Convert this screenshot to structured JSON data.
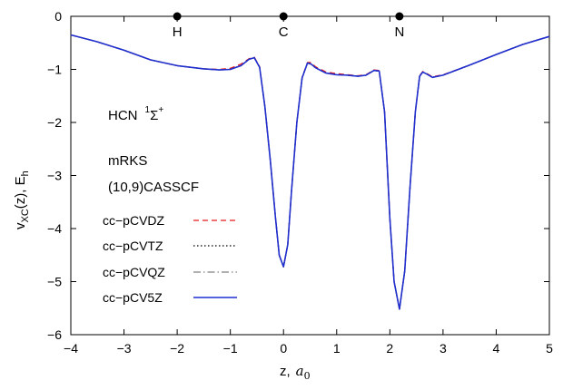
{
  "chart_data": {
    "type": "line",
    "title": "",
    "xlabel": "z,",
    "xlabel_unit": "a",
    "xlabel_unit_sub": "0",
    "ylabel_main": "v",
    "ylabel_sub": "XC",
    "ylabel_rest": "(z),  E",
    "ylabel_rest_sub": "h",
    "xlim": [
      -4,
      5
    ],
    "ylim": [
      -6,
      0
    ],
    "xticks": [
      "−4",
      "−3",
      "−2",
      "−1",
      "0",
      "1",
      "2",
      "3",
      "4",
      "5"
    ],
    "xtick_values": [
      -4,
      -3,
      -2,
      -1,
      0,
      1,
      2,
      3,
      4,
      5
    ],
    "yticks": [
      "0",
      "−1",
      "−2",
      "−3",
      "−4",
      "−5",
      "−6"
    ],
    "ytick_values": [
      0,
      -1,
      -2,
      -3,
      -4,
      -5,
      -6
    ],
    "grid": false,
    "legend_position": "left-bottom",
    "annotations": {
      "molecule": "HCN",
      "state_sup_left": "1",
      "state_symbol": "Σ",
      "state_sup_right": "+",
      "method": "mRKS",
      "active_space": "(10,9)CASSCF"
    },
    "atoms": [
      {
        "label": "H",
        "x": -2.0,
        "y": 0
      },
      {
        "label": "C",
        "x": 0.0,
        "y": 0
      },
      {
        "label": "N",
        "x": 2.18,
        "y": 0
      }
    ],
    "x": [
      -4.0,
      -3.5,
      -3.0,
      -2.5,
      -2.0,
      -1.5,
      -1.2,
      -1.0,
      -0.8,
      -0.65,
      -0.55,
      -0.45,
      -0.35,
      -0.25,
      -0.15,
      -0.08,
      0.0,
      0.08,
      0.15,
      0.25,
      0.35,
      0.45,
      0.52,
      0.6,
      0.8,
      1.0,
      1.2,
      1.4,
      1.55,
      1.7,
      1.8,
      1.9,
      2.0,
      2.08,
      2.18,
      2.28,
      2.38,
      2.48,
      2.56,
      2.62,
      2.7,
      2.8,
      3.0,
      3.5,
      4.0,
      4.5,
      5.0
    ],
    "series": [
      {
        "name": "cc−pCVDZ",
        "color": "#e41a1c",
        "dash": "6,4",
        "values": [
          -0.35,
          -0.48,
          -0.64,
          -0.82,
          -0.93,
          -0.99,
          -1.0,
          -0.98,
          -0.9,
          -0.8,
          -0.77,
          -0.95,
          -1.7,
          -2.7,
          -3.8,
          -4.5,
          -4.72,
          -4.3,
          -3.3,
          -2.0,
          -1.15,
          -0.87,
          -0.87,
          -0.95,
          -1.05,
          -1.08,
          -1.1,
          -1.12,
          -1.1,
          -1.01,
          -1.02,
          -1.8,
          -3.8,
          -5.0,
          -5.52,
          -4.8,
          -3.2,
          -1.8,
          -1.12,
          -1.04,
          -1.08,
          -1.14,
          -1.1,
          -0.92,
          -0.72,
          -0.53,
          -0.38
        ]
      },
      {
        "name": "cc−pCVTZ",
        "color": "#000000",
        "dash": "1.5,2.5",
        "values": [
          -0.35,
          -0.48,
          -0.64,
          -0.82,
          -0.93,
          -0.99,
          -1.01,
          -1.0,
          -0.93,
          -0.81,
          -0.78,
          -0.96,
          -1.7,
          -2.7,
          -3.8,
          -4.5,
          -4.72,
          -4.3,
          -3.3,
          -2.0,
          -1.16,
          -0.88,
          -0.9,
          -0.97,
          -1.07,
          -1.1,
          -1.11,
          -1.13,
          -1.11,
          -1.02,
          -1.03,
          -1.8,
          -3.8,
          -5.0,
          -5.52,
          -4.8,
          -3.2,
          -1.8,
          -1.13,
          -1.05,
          -1.09,
          -1.15,
          -1.11,
          -0.92,
          -0.72,
          -0.53,
          -0.38
        ]
      },
      {
        "name": "cc−pCVQZ",
        "color": "#808080",
        "dash": "8,3,1.5,3",
        "values": [
          -0.35,
          -0.48,
          -0.64,
          -0.82,
          -0.93,
          -0.99,
          -1.01,
          -1.0,
          -0.93,
          -0.81,
          -0.78,
          -0.96,
          -1.7,
          -2.7,
          -3.8,
          -4.5,
          -4.72,
          -4.3,
          -3.3,
          -2.0,
          -1.16,
          -0.88,
          -0.9,
          -0.97,
          -1.07,
          -1.1,
          -1.11,
          -1.13,
          -1.11,
          -1.02,
          -1.03,
          -1.8,
          -3.8,
          -5.0,
          -5.52,
          -4.8,
          -3.2,
          -1.8,
          -1.13,
          -1.05,
          -1.09,
          -1.15,
          -1.11,
          -0.92,
          -0.72,
          -0.53,
          -0.38
        ]
      },
      {
        "name": "cc−pCV5Z",
        "color": "#1f2fcf",
        "dash": "",
        "values": [
          -0.35,
          -0.48,
          -0.64,
          -0.82,
          -0.93,
          -0.99,
          -1.01,
          -1.0,
          -0.93,
          -0.81,
          -0.78,
          -0.96,
          -1.7,
          -2.7,
          -3.8,
          -4.5,
          -4.72,
          -4.3,
          -3.3,
          -2.0,
          -1.16,
          -0.88,
          -0.9,
          -0.97,
          -1.07,
          -1.1,
          -1.11,
          -1.13,
          -1.11,
          -1.02,
          -1.03,
          -1.8,
          -3.8,
          -5.0,
          -5.52,
          -4.8,
          -3.2,
          -1.8,
          -1.13,
          -1.05,
          -1.09,
          -1.15,
          -1.11,
          -0.92,
          -0.72,
          -0.53,
          -0.38
        ]
      }
    ]
  }
}
